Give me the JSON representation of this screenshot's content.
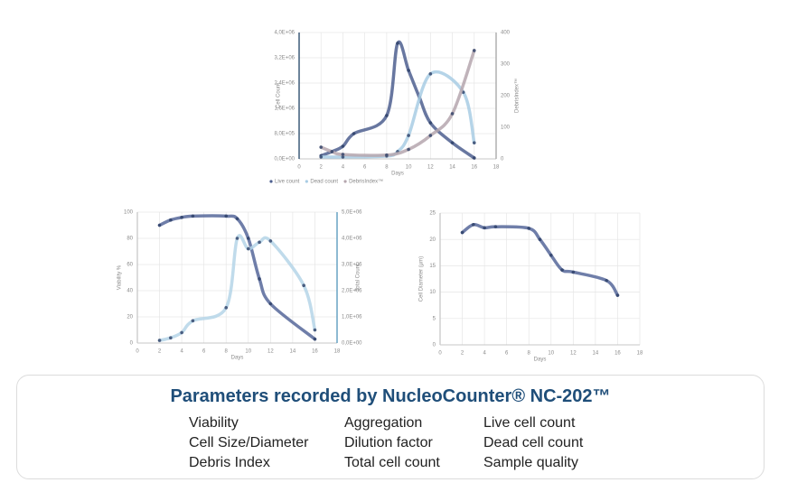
{
  "chart_data": [
    {
      "type": "line",
      "y_label": "Cell Count",
      "y2_label": "DebrisIndex™",
      "x_label": "Days",
      "xlim": [
        0,
        18
      ],
      "xticks": [
        0,
        2,
        4,
        6,
        8,
        10,
        12,
        14,
        16,
        18
      ],
      "ylim": [
        0,
        4000000
      ],
      "yticks": [
        {
          "value": 0,
          "label": "0,0E+00"
        },
        {
          "value": 800000,
          "label": "8,0E+05"
        },
        {
          "value": 1600000,
          "label": "1,6E+06"
        },
        {
          "value": 2400000,
          "label": "2,4E+06"
        },
        {
          "value": 3200000,
          "label": "3,2E+06"
        },
        {
          "value": 4000000,
          "label": "4,0E+06"
        }
      ],
      "y2lim": [
        0,
        400
      ],
      "y2ticks": [
        0,
        100,
        200,
        300,
        400
      ],
      "grid": true,
      "legend": "bottom",
      "series": [
        {
          "name": "Live count",
          "color": "#4d5f8f",
          "x": [
            2,
            3,
            4,
            5,
            8,
            9,
            10,
            11,
            12,
            14,
            16
          ],
          "values": [
            100000,
            230000,
            400000,
            800000,
            1370000,
            3660000,
            2800000,
            1940000,
            1140000,
            510000,
            30000
          ]
        },
        {
          "name": "Dead count",
          "color": "#a8cce4",
          "x": [
            2,
            4,
            8,
            9,
            10,
            12,
            15,
            16
          ],
          "values": [
            60000,
            60000,
            90000,
            230000,
            740000,
            2690000,
            2110000,
            510000
          ]
        },
        {
          "name": "DebrisIndex™",
          "color": "#b5a6ae",
          "axis": "y2",
          "x": [
            2,
            3,
            4,
            8,
            10,
            12,
            14,
            16
          ],
          "values": [
            37,
            23,
            14,
            12,
            30,
            74,
            143,
            343
          ]
        }
      ]
    },
    {
      "type": "line",
      "y_label": "Viability %",
      "y2_label": "Total Count",
      "x_label": "Days",
      "xlim": [
        0,
        18
      ],
      "xticks": [
        0,
        2,
        4,
        6,
        8,
        10,
        12,
        14,
        16,
        18
      ],
      "ylim": [
        0,
        100
      ],
      "yticks": [
        0,
        20,
        40,
        60,
        80,
        100
      ],
      "y2lim": [
        0,
        5000000
      ],
      "y2ticks": [
        {
          "value": 0,
          "label": "0,0E+00"
        },
        {
          "value": 1000000,
          "label": "1,0E+06"
        },
        {
          "value": 2000000,
          "label": "2,0E+06"
        },
        {
          "value": 3000000,
          "label": "3,0E+06"
        },
        {
          "value": 4000000,
          "label": "4,0E+06"
        },
        {
          "value": 5000000,
          "label": "5,0E+06"
        }
      ],
      "grid": true,
      "series": [
        {
          "color": "#56679a",
          "x": [
            2,
            3,
            4,
            5,
            8,
            9,
            10,
            11,
            12,
            16
          ],
          "values": [
            90,
            94,
            96,
            97,
            97,
            95,
            80,
            49,
            30,
            3
          ]
        },
        {
          "color": "#b5d5e8",
          "axis": "y2",
          "x": [
            2,
            3,
            4,
            5,
            8,
            9,
            10,
            11,
            12,
            15,
            16
          ],
          "values": [
            100000,
            200000,
            400000,
            850000,
            1350000,
            4000000,
            3600000,
            3850000,
            3900000,
            2200000,
            500000
          ]
        }
      ]
    },
    {
      "type": "line",
      "y_label": "Cell Diameter (µm)",
      "x_label": "Days",
      "xlim": [
        0,
        18
      ],
      "xticks": [
        0,
        2,
        4,
        6,
        8,
        10,
        12,
        14,
        16,
        18
      ],
      "ylim": [
        0,
        25
      ],
      "yticks": [
        0,
        5,
        10,
        15,
        20,
        25
      ],
      "grid": true,
      "series": [
        {
          "color": "#56679a",
          "x": [
            2,
            3,
            4,
            5,
            8,
            9,
            10,
            11,
            12,
            15,
            16
          ],
          "values": [
            21.3,
            22.8,
            22.2,
            22.4,
            22.1,
            20,
            17,
            14.2,
            13.8,
            12.2,
            9.4
          ]
        }
      ]
    }
  ],
  "parameters": {
    "title": "Parameters recorded by NucleoCounter® NC-202™",
    "columns": [
      [
        "Viability",
        "Cell Size/Diameter",
        "Debris Index"
      ],
      [
        "Aggregation",
        "Dilution factor",
        "Total cell count"
      ],
      [
        "Live cell count",
        "Dead cell count",
        "Sample quality"
      ]
    ]
  }
}
